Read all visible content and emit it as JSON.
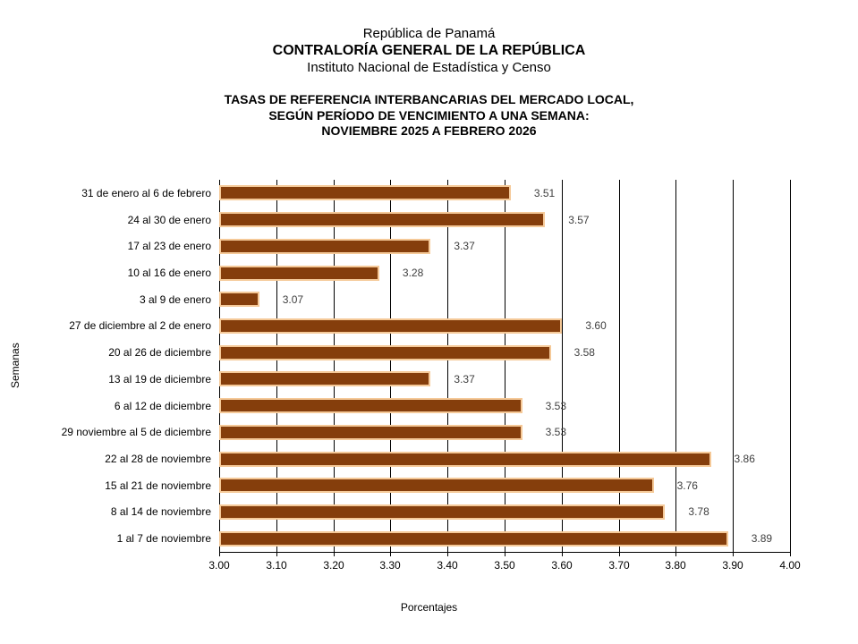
{
  "header": {
    "line1": "República de Panamá",
    "line2": "CONTRALORÍA GENERAL DE LA REPÚBLICA",
    "line3": "Instituto Nacional de Estadística y Censo"
  },
  "title": {
    "line1": "TASAS DE REFERENCIA INTERBANCARIAS DEL MERCADO LOCAL,",
    "line2": "SEGÚN PERÍODO DE VENCIMIENTO A UNA SEMANA:",
    "line3": "NOVIEMBRE 2025 A FEBRERO 2026"
  },
  "chart_data": {
    "type": "bar",
    "orientation": "horizontal",
    "title": "TASAS DE REFERENCIA INTERBANCARIAS DEL MERCADO LOCAL, SEGÚN PERÍODO DE VENCIMIENTO A UNA SEMANA: NOVIEMBRE 2025 A FEBRERO 2026",
    "categories": [
      "31 de enero al 6 de febrero",
      "24 al 30 de enero",
      "17 al 23 de enero",
      "10 al 16 de enero",
      "3 al 9 de enero",
      "27 de diciembre al 2 de enero",
      "20 al 26 de diciembre",
      "13 al 19 de diciembre",
      "6 al 12 de diciembre",
      "29 noviembre al 5 de diciembre",
      "22 al 28 de noviembre",
      "15 al 21 de noviembre",
      "8 al 14 de noviembre",
      "1 al 7 de noviembre"
    ],
    "values": [
      3.51,
      3.57,
      3.37,
      3.28,
      3.07,
      3.6,
      3.58,
      3.37,
      3.53,
      3.53,
      3.86,
      3.76,
      3.78,
      3.89
    ],
    "value_labels": [
      "3.51",
      "3.57",
      "3.37",
      "3.28",
      "3.07",
      "3.60",
      "3.58",
      "3.37",
      "3.53",
      "3.53",
      "3.86",
      "3.76",
      "3.78",
      "3.89"
    ],
    "xlabel": "Porcentajes",
    "ylabel": "Semanas",
    "xlim": [
      3.0,
      4.0
    ],
    "xticks": [
      "3.00",
      "3.10",
      "3.20",
      "3.30",
      "3.40",
      "3.50",
      "3.60",
      "3.70",
      "3.80",
      "3.90",
      "4.00"
    ],
    "grid": true,
    "legend": "none",
    "colors": {
      "bar_fill": "#853e0c",
      "bar_border": "#f5c998",
      "gridline": "#000000",
      "value_label_text": "#3f3f3f",
      "axis_text": "#000000"
    }
  }
}
